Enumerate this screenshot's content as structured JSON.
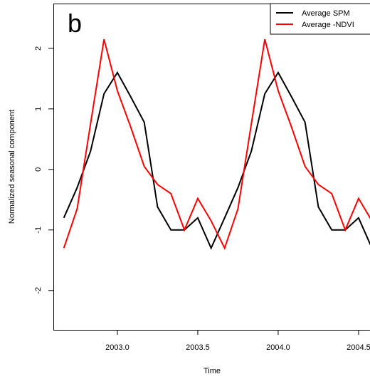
{
  "chart_data": {
    "type": "line",
    "annotation": "b",
    "xlabel": "Time",
    "ylabel": "Normalized seasonal component",
    "x": [
      2002.667,
      2002.75,
      2002.833,
      2002.917,
      2003,
      2003.083,
      2003.167,
      2003.25,
      2003.333,
      2003.417,
      2003.5,
      2003.583,
      2003.667,
      2003.75,
      2003.833,
      2003.917,
      2004,
      2004.083,
      2004.167,
      2004.25,
      2004.333,
      2004.417,
      2004.5,
      2004.583
    ],
    "series": [
      {
        "name": "Average SPM",
        "color": "#000000",
        "values": [
          -0.8,
          -0.3,
          0.3,
          1.25,
          1.6,
          1.2,
          0.78,
          -0.62,
          -1.0,
          -1.0,
          -0.8,
          -1.3,
          -0.8,
          -0.3,
          0.3,
          1.25,
          1.6,
          1.2,
          0.78,
          -0.62,
          -1.0,
          -1.0,
          -0.8,
          -1.3
        ]
      },
      {
        "name": "Average -NDVI",
        "color": "#ff0000",
        "values": [
          -1.3,
          -0.65,
          0.75,
          2.15,
          1.3,
          0.7,
          0.05,
          -0.25,
          -0.4,
          -1.0,
          -0.48,
          -0.85,
          -1.3,
          -0.65,
          0.75,
          2.15,
          1.3,
          0.7,
          0.05,
          -0.25,
          -0.4,
          -1.0,
          -0.48,
          -0.85
        ]
      }
    ],
    "xlim": [
      2002.602,
      2004.571
    ],
    "xticks": [
      {
        "value": 2003,
        "label": "2003.0"
      },
      2003.5,
      {
        "value": 2004,
        "label": "2004.0"
      },
      2004.5
    ],
    "ylim": [
      -2.65,
      2.74
    ],
    "yticks": [
      -2,
      -1,
      0,
      1,
      2
    ],
    "legend": "top-right"
  }
}
